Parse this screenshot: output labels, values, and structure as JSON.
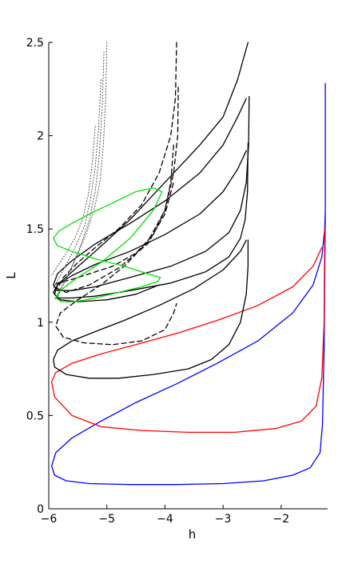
{
  "chart_data": {
    "type": "line",
    "title": "",
    "xlabel": "h",
    "ylabel": "L",
    "xlim": [
      -6,
      -1.2
    ],
    "ylim": [
      0,
      2.5
    ],
    "xticks": [
      -6,
      -5,
      -4,
      -3,
      -2
    ],
    "yticks": [
      0,
      0.5,
      1,
      1.5,
      2,
      2.5
    ],
    "xtick_labels": [
      "−6",
      "−5",
      "−4",
      "−3",
      "−2"
    ],
    "ytick_labels": [
      "0",
      "0.5",
      "1",
      "1.5",
      "2",
      "2.5"
    ],
    "grid": false,
    "legend": "none",
    "series": [
      {
        "color": "#0000ff",
        "style": "solid",
        "x": [
          -1.24,
          -1.24,
          -1.26,
          -1.29,
          -1.33,
          -1.5,
          -1.8,
          -2.3,
          -3.0,
          -3.8,
          -4.6,
          -5.3,
          -5.7,
          -5.9,
          -5.95,
          -5.88,
          -5.6,
          -5.1,
          -4.5,
          -3.8,
          -3.1,
          -2.4,
          -1.8,
          -1.45,
          -1.3,
          -1.25,
          -1.24
        ],
        "y": [
          2.28,
          1.6,
          0.85,
          0.45,
          0.3,
          0.22,
          0.18,
          0.15,
          0.135,
          0.13,
          0.13,
          0.135,
          0.15,
          0.18,
          0.23,
          0.3,
          0.38,
          0.47,
          0.57,
          0.67,
          0.78,
          0.9,
          1.05,
          1.2,
          1.35,
          1.5,
          1.6
        ]
      },
      {
        "color": "#ff0000",
        "style": "solid",
        "x": [
          -1.25,
          -1.26,
          -1.3,
          -1.4,
          -1.65,
          -2.1,
          -2.8,
          -3.6,
          -4.4,
          -5.1,
          -5.6,
          -5.9,
          -5.95,
          -5.88,
          -5.6,
          -5.1,
          -4.5,
          -3.8,
          -3.1,
          -2.4,
          -1.8,
          -1.45,
          -1.3
        ],
        "y": [
          1.5,
          1.0,
          0.7,
          0.55,
          0.47,
          0.43,
          0.41,
          0.41,
          0.42,
          0.44,
          0.5,
          0.6,
          0.68,
          0.73,
          0.78,
          0.83,
          0.88,
          0.94,
          1.01,
          1.09,
          1.19,
          1.3,
          1.4
        ]
      },
      {
        "color": "#000000",
        "style": "solid",
        "x": [
          -2.57,
          -2.57,
          -2.6,
          -2.7,
          -2.9,
          -3.2,
          -3.6,
          -4.2,
          -4.8,
          -5.3,
          -5.7,
          -5.9,
          -5.92,
          -5.85,
          -5.6,
          -5.2,
          -4.7,
          -4.1,
          -3.5,
          -3.0,
          -2.7,
          -2.6
        ],
        "y": [
          1.44,
          1.3,
          1.15,
          1.0,
          0.88,
          0.8,
          0.75,
          0.72,
          0.7,
          0.7,
          0.72,
          0.76,
          0.8,
          0.85,
          0.9,
          0.95,
          1.01,
          1.09,
          1.18,
          1.28,
          1.38,
          1.44
        ]
      },
      {
        "color": "#000000",
        "style": "solid",
        "x": [
          -2.57,
          -2.58,
          -2.62,
          -2.7,
          -2.9,
          -3.3,
          -3.9,
          -4.6,
          -5.2,
          -5.6,
          -5.85,
          -5.92,
          -5.85,
          -5.6,
          -5.2,
          -4.6,
          -4.0,
          -3.4,
          -3.0,
          -2.75,
          -2.6
        ],
        "y": [
          1.96,
          1.7,
          1.55,
          1.45,
          1.35,
          1.27,
          1.21,
          1.17,
          1.14,
          1.13,
          1.13,
          1.16,
          1.2,
          1.25,
          1.31,
          1.38,
          1.47,
          1.58,
          1.7,
          1.82,
          1.92
        ]
      },
      {
        "color": "#000000",
        "style": "solid",
        "x": [
          -2.55,
          -2.56,
          -2.6,
          -2.7,
          -2.9,
          -3.3,
          -3.9,
          -4.6,
          -5.2,
          -5.6,
          -5.85,
          -5.92,
          -5.85,
          -5.6,
          -5.2,
          -4.6,
          -4.0,
          -3.4,
          -3.0,
          -2.75,
          -2.6
        ],
        "y": [
          2.21,
          1.95,
          1.75,
          1.6,
          1.48,
          1.38,
          1.3,
          1.24,
          1.19,
          1.17,
          1.17,
          1.2,
          1.26,
          1.33,
          1.42,
          1.53,
          1.65,
          1.8,
          1.95,
          2.1,
          2.2
        ]
      },
      {
        "color": "#000000",
        "style": "solid",
        "x": [
          -2.57,
          -2.75,
          -3.0,
          -3.4,
          -4.0,
          -4.6,
          -5.2,
          -5.6,
          -5.85,
          -5.9,
          -5.8,
          -5.5,
          -5.0,
          -4.5,
          -4.1
        ],
        "y": [
          2.5,
          2.3,
          2.1,
          1.95,
          1.75,
          1.55,
          1.38,
          1.27,
          1.2,
          1.15,
          1.12,
          1.11,
          1.12,
          1.15,
          1.2
        ]
      },
      {
        "color": "#000000",
        "style": "dashed",
        "x": [
          -3.77,
          -3.78,
          -3.85,
          -4.0,
          -4.3,
          -4.7,
          -5.1,
          -5.5,
          -5.8,
          -5.88,
          -5.75,
          -5.4,
          -4.9,
          -4.4,
          -4.0,
          -3.85,
          -3.8
        ],
        "y": [
          2.26,
          2.0,
          1.8,
          1.6,
          1.43,
          1.3,
          1.2,
          1.12,
          1.05,
          0.98,
          0.92,
          0.89,
          0.88,
          0.9,
          0.96,
          1.05,
          1.1
        ]
      },
      {
        "color": "#000000",
        "style": "dashed",
        "x": [
          -3.8,
          -3.82,
          -3.9,
          -4.1,
          -4.4,
          -4.8,
          -5.2,
          -5.5,
          -5.75,
          -5.85,
          -5.7,
          -5.3,
          -4.8,
          -4.3,
          -4.0,
          -3.85
        ],
        "y": [
          2.5,
          2.2,
          2.0,
          1.8,
          1.63,
          1.5,
          1.4,
          1.32,
          1.24,
          1.18,
          1.16,
          1.2,
          1.29,
          1.42,
          1.58,
          1.75
        ]
      },
      {
        "color": "#000000",
        "style": "dashed",
        "x": [
          -3.85,
          -3.9,
          -4.0,
          -4.2,
          -4.5,
          -4.9,
          -5.3,
          -5.6,
          -5.85,
          -5.9
        ],
        "y": [
          1.95,
          1.75,
          1.6,
          1.47,
          1.37,
          1.3,
          1.26,
          1.23,
          1.21,
          1.2
        ]
      },
      {
        "color": "#555555",
        "style": "dotted",
        "x": [
          -5.0,
          -5.02,
          -5.06,
          -5.12,
          -5.22,
          -5.36,
          -5.52,
          -5.68,
          -5.82,
          -5.9
        ],
        "y": [
          2.5,
          2.2,
          1.95,
          1.75,
          1.6,
          1.47,
          1.35,
          1.25,
          1.17,
          1.12
        ]
      },
      {
        "color": "#555555",
        "style": "dotted",
        "x": [
          -5.05,
          -5.08,
          -5.13,
          -5.2,
          -5.3,
          -5.44,
          -5.6,
          -5.75,
          -5.87
        ],
        "y": [
          2.45,
          2.15,
          1.9,
          1.7,
          1.55,
          1.42,
          1.3,
          1.2,
          1.12
        ]
      },
      {
        "color": "#555555",
        "style": "dotted",
        "x": [
          -5.1,
          -5.14,
          -5.2,
          -5.28,
          -5.38,
          -5.52,
          -5.68,
          -5.82,
          -5.92
        ],
        "y": [
          2.3,
          2.05,
          1.83,
          1.66,
          1.52,
          1.42,
          1.32,
          1.24,
          1.18
        ]
      },
      {
        "color": "#555555",
        "style": "dotted",
        "x": [
          -5.2,
          -5.25,
          -5.32,
          -5.42,
          -5.55,
          -5.7,
          -5.85,
          -5.95
        ],
        "y": [
          2.05,
          1.85,
          1.68,
          1.55,
          1.45,
          1.37,
          1.3,
          1.25
        ]
      },
      {
        "color": "#00e000",
        "style": "solid",
        "closed": true,
        "x": [
          -4.05,
          -4.2,
          -4.5,
          -4.9,
          -5.3,
          -5.6,
          -5.82,
          -5.92,
          -5.85,
          -5.6,
          -5.2,
          -4.7,
          -4.3,
          -4.08,
          -4.12,
          -4.4,
          -4.8,
          -5.2,
          -5.55,
          -5.78,
          -5.88,
          -5.8,
          -5.55,
          -5.1,
          -4.6,
          -4.2,
          -4.05
        ],
        "y": [
          1.7,
          1.72,
          1.7,
          1.64,
          1.58,
          1.53,
          1.49,
          1.45,
          1.41,
          1.38,
          1.34,
          1.3,
          1.26,
          1.24,
          1.22,
          1.19,
          1.16,
          1.13,
          1.11,
          1.11,
          1.13,
          1.17,
          1.23,
          1.32,
          1.45,
          1.6,
          1.7
        ]
      }
    ]
  }
}
